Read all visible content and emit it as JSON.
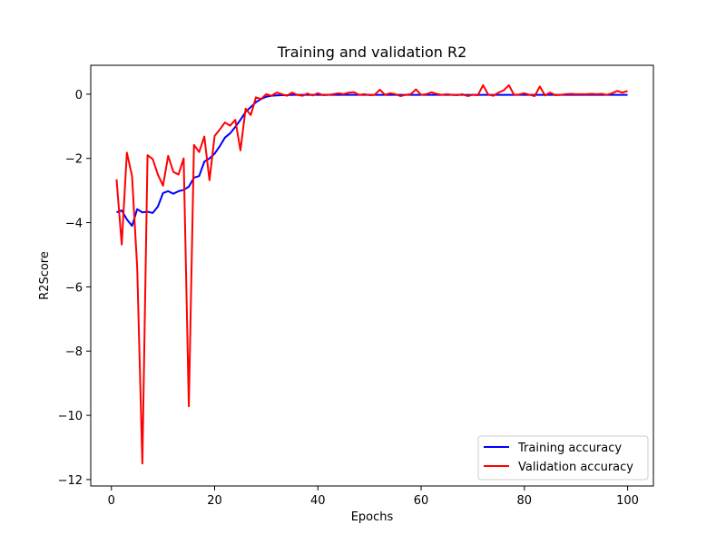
{
  "chart_data": {
    "type": "line",
    "title": "Training and validation R2",
    "xlabel": "Epochs",
    "ylabel": "R2Score",
    "xlim": [
      -4,
      105
    ],
    "ylim": [
      -12.2,
      0.9
    ],
    "xticks": [
      0,
      20,
      40,
      60,
      80,
      100
    ],
    "yticks": [
      0,
      -2,
      -4,
      -6,
      -8,
      -10,
      -12
    ],
    "grid": false,
    "legend_position": "lower-right",
    "x": [
      1,
      2,
      3,
      4,
      5,
      6,
      7,
      8,
      9,
      10,
      11,
      12,
      13,
      14,
      15,
      16,
      17,
      18,
      19,
      20,
      21,
      22,
      23,
      24,
      25,
      26,
      27,
      28,
      29,
      30,
      31,
      32,
      33,
      34,
      35,
      36,
      37,
      38,
      39,
      40,
      41,
      42,
      43,
      44,
      45,
      46,
      47,
      48,
      49,
      50,
      51,
      52,
      53,
      54,
      55,
      56,
      57,
      58,
      59,
      60,
      61,
      62,
      63,
      64,
      65,
      66,
      67,
      68,
      69,
      70,
      71,
      72,
      73,
      74,
      75,
      76,
      77,
      78,
      79,
      80,
      81,
      82,
      83,
      84,
      85,
      86,
      87,
      88,
      89,
      90,
      91,
      92,
      93,
      94,
      95,
      96,
      97,
      98,
      99,
      100
    ],
    "series": [
      {
        "name": "Training accuracy",
        "color": "#0000ff",
        "values": [
          -3.68,
          -3.62,
          -3.9,
          -4.1,
          -3.58,
          -3.68,
          -3.66,
          -3.7,
          -3.5,
          -3.08,
          -3.02,
          -3.1,
          -3.02,
          -2.98,
          -2.88,
          -2.6,
          -2.55,
          -2.1,
          -2.0,
          -1.85,
          -1.62,
          -1.35,
          -1.22,
          -1.02,
          -0.8,
          -0.55,
          -0.4,
          -0.25,
          -0.15,
          -0.08,
          -0.05,
          -0.04,
          -0.03,
          -0.03,
          -0.02,
          -0.02,
          -0.02,
          -0.02,
          -0.02,
          -0.02,
          -0.02,
          -0.02,
          -0.02,
          -0.02,
          -0.02,
          -0.02,
          -0.02,
          -0.02,
          -0.02,
          -0.02,
          -0.02,
          -0.02,
          -0.02,
          -0.02,
          -0.02,
          -0.02,
          -0.02,
          -0.02,
          -0.02,
          -0.02,
          -0.02,
          -0.02,
          -0.02,
          -0.02,
          -0.02,
          -0.02,
          -0.02,
          -0.02,
          -0.02,
          -0.02,
          -0.02,
          -0.02,
          -0.02,
          -0.02,
          -0.02,
          -0.02,
          -0.02,
          -0.02,
          -0.02,
          -0.02,
          -0.02,
          -0.02,
          -0.02,
          -0.02,
          -0.02,
          -0.02,
          -0.02,
          -0.02,
          -0.02,
          -0.02,
          -0.02,
          -0.02,
          -0.02,
          -0.02,
          -0.02,
          -0.02,
          -0.02,
          -0.02,
          -0.02,
          -0.02
        ]
      },
      {
        "name": "Validation accuracy",
        "color": "#ff0000",
        "values": [
          -2.65,
          -4.68,
          -1.82,
          -2.55,
          -5.4,
          -11.5,
          -1.9,
          -2.02,
          -2.5,
          -2.85,
          -1.92,
          -2.42,
          -2.5,
          -2.0,
          -9.72,
          -1.58,
          -1.8,
          -1.32,
          -2.68,
          -1.3,
          -1.1,
          -0.88,
          -0.98,
          -0.8,
          -1.75,
          -0.45,
          -0.65,
          -0.1,
          -0.15,
          0.0,
          -0.05,
          0.05,
          0.0,
          -0.05,
          0.05,
          -0.02,
          -0.05,
          0.02,
          -0.04,
          0.03,
          -0.03,
          -0.02,
          0.0,
          0.03,
          0.0,
          0.05,
          0.06,
          -0.02,
          0.0,
          -0.03,
          -0.02,
          0.14,
          -0.02,
          0.03,
          0.0,
          -0.06,
          -0.02,
          0.0,
          0.15,
          -0.02,
          0.0,
          0.06,
          0.01,
          -0.02,
          0.0,
          -0.02,
          -0.03,
          0.0,
          -0.06,
          -0.02,
          -0.03,
          0.28,
          -0.01,
          -0.05,
          0.05,
          0.12,
          0.28,
          -0.02,
          -0.01,
          0.03,
          -0.02,
          -0.06,
          0.24,
          -0.04,
          0.05,
          -0.03,
          -0.02,
          0.0,
          0.01,
          0.0,
          0.0,
          0.0,
          0.01,
          0.0,
          0.01,
          -0.02,
          0.03,
          0.1,
          0.05,
          0.1
        ]
      }
    ]
  }
}
